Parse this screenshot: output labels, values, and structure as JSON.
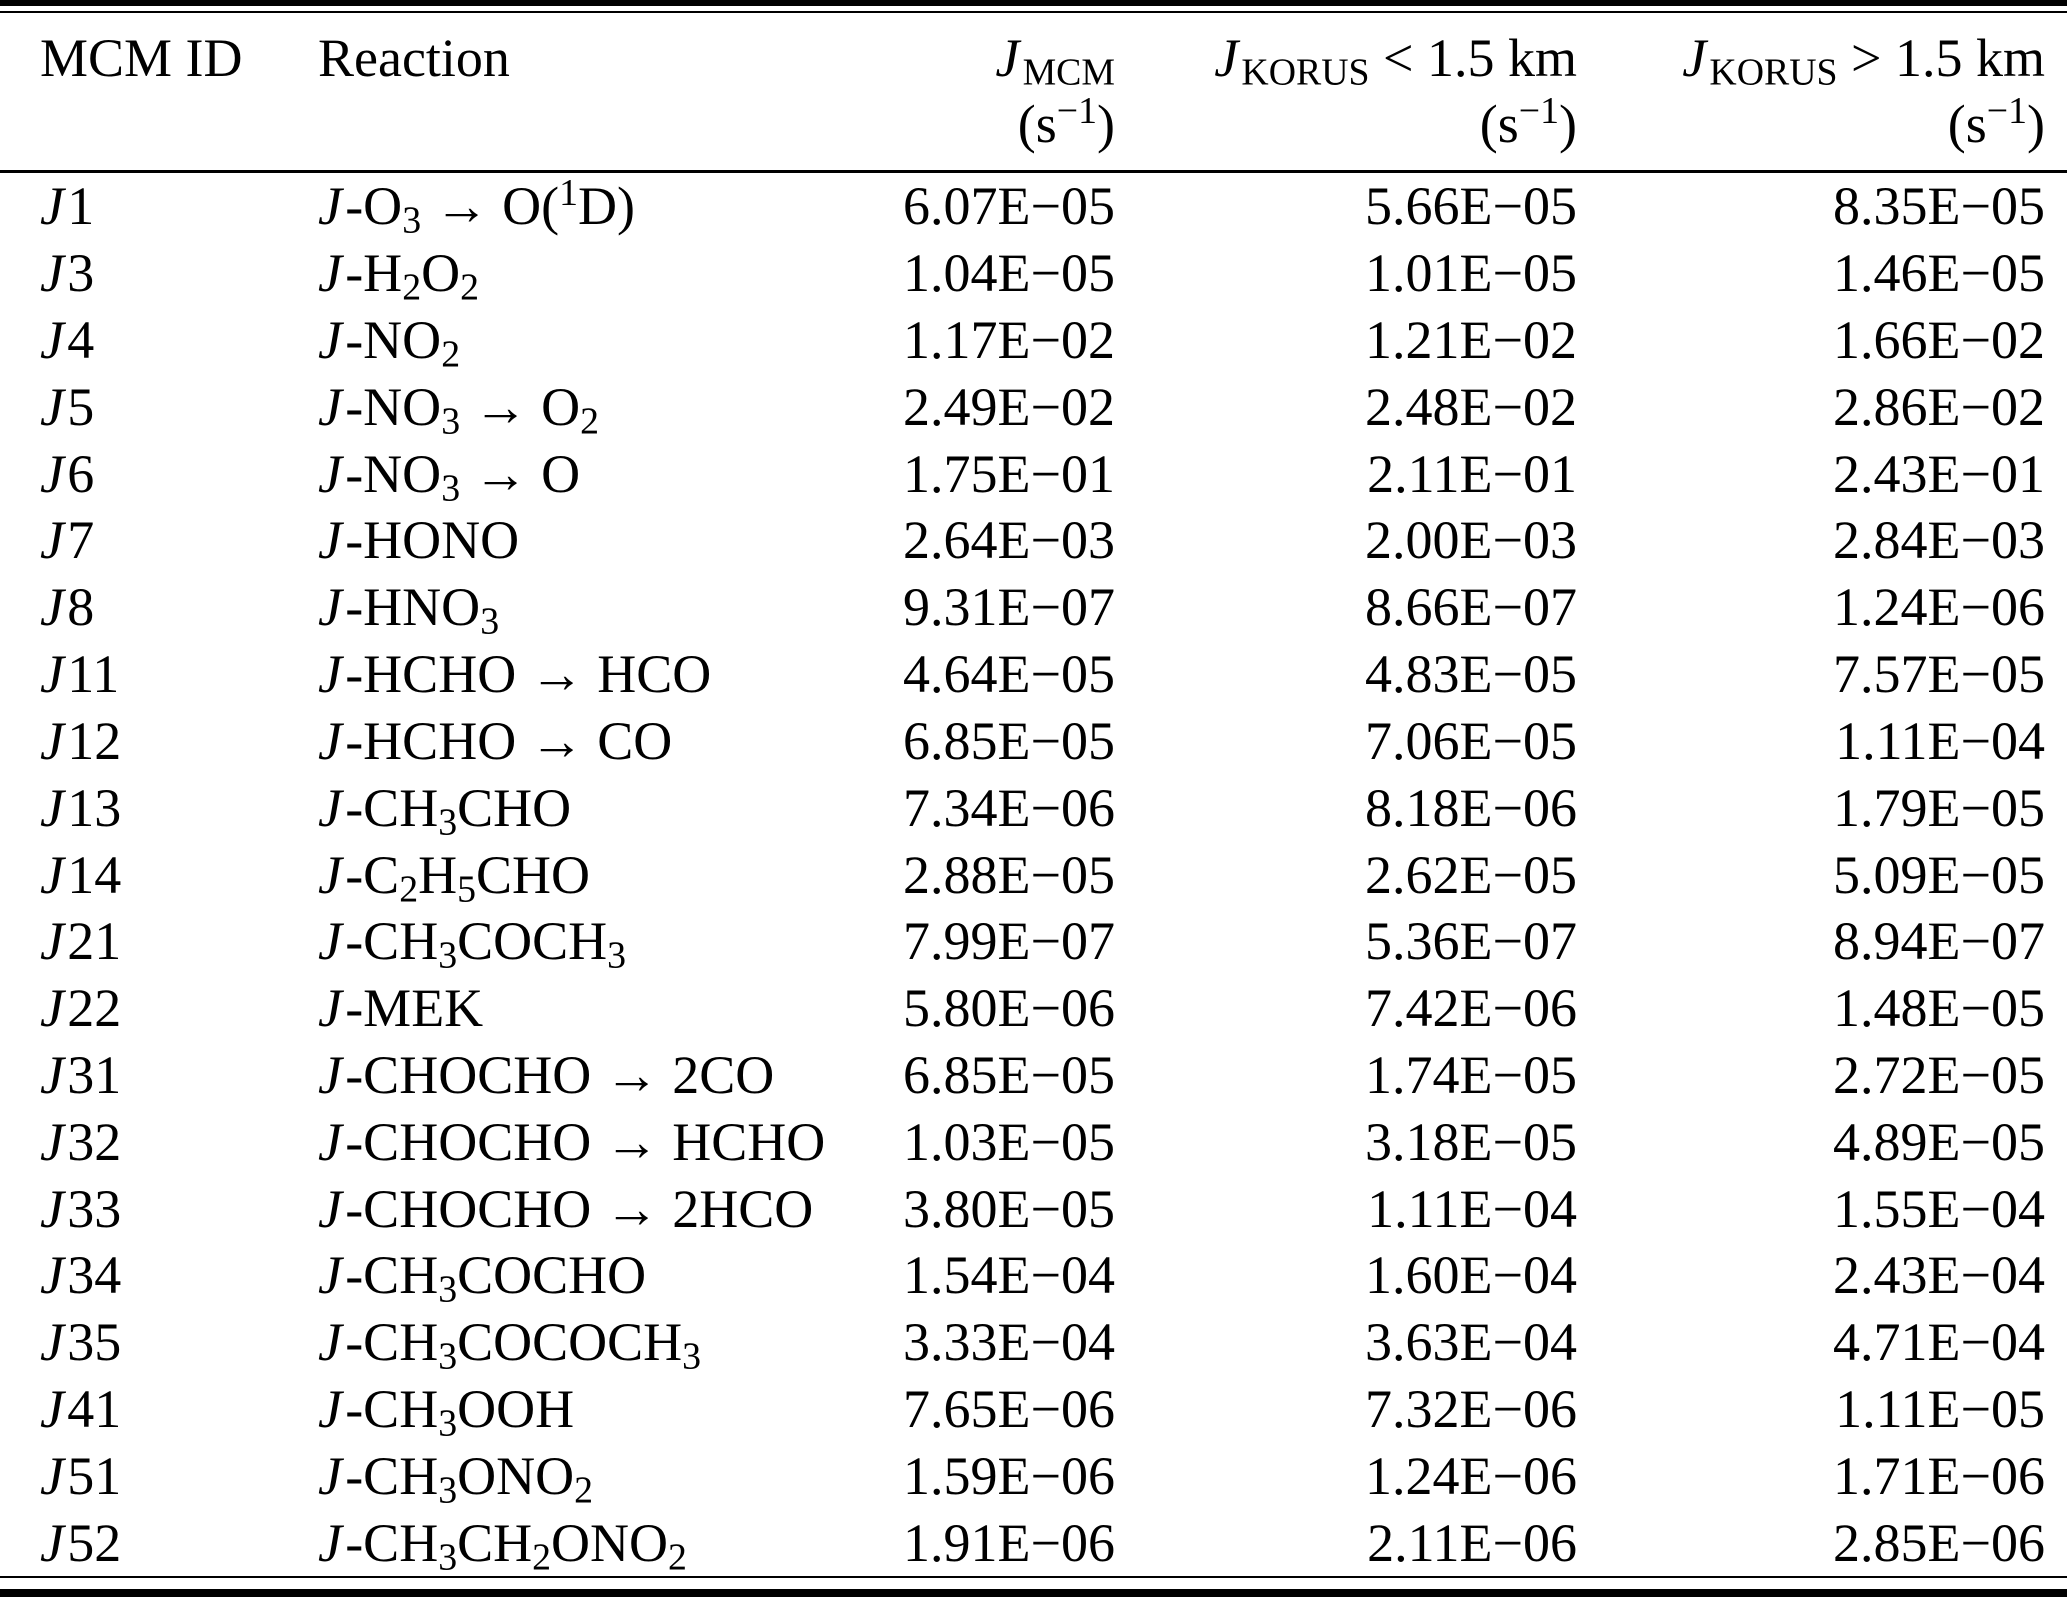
{
  "page": {
    "background_color": "#ffffff",
    "text_color": "#000000",
    "description": "Journal-style table of photolysis frequencies (J values) comparing MCM defaults with KORUS campaign values below and above 1.5 km"
  },
  "table": {
    "columns": [
      {
        "key": "id",
        "label": "MCM ID",
        "unit": ""
      },
      {
        "key": "reaction",
        "label": "Reaction",
        "unit": ""
      },
      {
        "key": "j_mcm",
        "label": "*J*~MCM~",
        "unit": "(s^−1^)"
      },
      {
        "key": "j_korus_below",
        "label": "*J*~KORUS~ < 1.5 km",
        "unit": "(s^−1^)"
      },
      {
        "key": "j_korus_above",
        "label": "*J*~KORUS~ > 1.5 km",
        "unit": "(s^−1^)"
      }
    ],
    "rows": [
      {
        "id": "*J*1",
        "reaction": "*J*-O~3~ → O(^1^D)",
        "j_mcm": "6.07E−05",
        "j_korus_below": "5.66E−05",
        "j_korus_above": "8.35E−05"
      },
      {
        "id": "*J*3",
        "reaction": "*J*-H~2~O~2~",
        "j_mcm": "1.04E−05",
        "j_korus_below": "1.01E−05",
        "j_korus_above": "1.46E−05"
      },
      {
        "id": "*J*4",
        "reaction": "*J*-NO~2~",
        "j_mcm": "1.17E−02",
        "j_korus_below": "1.21E−02",
        "j_korus_above": "1.66E−02"
      },
      {
        "id": "*J*5",
        "reaction": "*J*-NO~3~ → O~2~",
        "j_mcm": "2.49E−02",
        "j_korus_below": "2.48E−02",
        "j_korus_above": "2.86E−02"
      },
      {
        "id": "*J*6",
        "reaction": "*J*-NO~3~ → O",
        "j_mcm": "1.75E−01",
        "j_korus_below": "2.11E−01",
        "j_korus_above": "2.43E−01"
      },
      {
        "id": "*J*7",
        "reaction": "*J*-HONO",
        "j_mcm": "2.64E−03",
        "j_korus_below": "2.00E−03",
        "j_korus_above": "2.84E−03"
      },
      {
        "id": "*J*8",
        "reaction": "*J*-HNO~3~",
        "j_mcm": "9.31E−07",
        "j_korus_below": "8.66E−07",
        "j_korus_above": "1.24E−06"
      },
      {
        "id": "*J*11",
        "reaction": "*J*-HCHO → HCO",
        "j_mcm": "4.64E−05",
        "j_korus_below": "4.83E−05",
        "j_korus_above": "7.57E−05"
      },
      {
        "id": "*J*12",
        "reaction": "*J*-HCHO → CO",
        "j_mcm": "6.85E−05",
        "j_korus_below": "7.06E−05",
        "j_korus_above": "1.11E−04"
      },
      {
        "id": "*J*13",
        "reaction": "*J*-CH~3~CHO",
        "j_mcm": "7.34E−06",
        "j_korus_below": "8.18E−06",
        "j_korus_above": "1.79E−05"
      },
      {
        "id": "*J*14",
        "reaction": "*J*-C~2~H~5~CHO",
        "j_mcm": "2.88E−05",
        "j_korus_below": "2.62E−05",
        "j_korus_above": "5.09E−05"
      },
      {
        "id": "*J*21",
        "reaction": "*J*-CH~3~COCH~3~",
        "j_mcm": "7.99E−07",
        "j_korus_below": "5.36E−07",
        "j_korus_above": "8.94E−07"
      },
      {
        "id": "*J*22",
        "reaction": "*J*-MEK",
        "j_mcm": "5.80E−06",
        "j_korus_below": "7.42E−06",
        "j_korus_above": "1.48E−05"
      },
      {
        "id": "*J*31",
        "reaction": "*J*-CHOCHO → 2CO",
        "j_mcm": "6.85E−05",
        "j_korus_below": "1.74E−05",
        "j_korus_above": "2.72E−05"
      },
      {
        "id": "*J*32",
        "reaction": "*J*-CHOCHO → HCHO",
        "j_mcm": "1.03E−05",
        "j_korus_below": "3.18E−05",
        "j_korus_above": "4.89E−05"
      },
      {
        "id": "*J*33",
        "reaction": "*J*-CHOCHO → 2HCO",
        "j_mcm": "3.80E−05",
        "j_korus_below": "1.11E−04",
        "j_korus_above": "1.55E−04"
      },
      {
        "id": "*J*34",
        "reaction": "*J*-CH~3~COCHO",
        "j_mcm": "1.54E−04",
        "j_korus_below": "1.60E−04",
        "j_korus_above": "2.43E−04"
      },
      {
        "id": "*J*35",
        "reaction": "*J*-CH~3~COCOCH~3~",
        "j_mcm": "3.33E−04",
        "j_korus_below": "3.63E−04",
        "j_korus_above": "4.71E−04"
      },
      {
        "id": "*J*41",
        "reaction": "*J*-CH~3~OOH",
        "j_mcm": "7.65E−06",
        "j_korus_below": "7.32E−06",
        "j_korus_above": "1.11E−05"
      },
      {
        "id": "*J*51",
        "reaction": "*J*-CH~3~ONO~2~",
        "j_mcm": "1.59E−06",
        "j_korus_below": "1.24E−06",
        "j_korus_above": "1.71E−06"
      },
      {
        "id": "*J*52",
        "reaction": "*J*-CH~3~CH~2~ONO~2~",
        "j_mcm": "1.91E−06",
        "j_korus_below": "2.11E−06",
        "j_korus_above": "2.85E−06"
      }
    ]
  }
}
